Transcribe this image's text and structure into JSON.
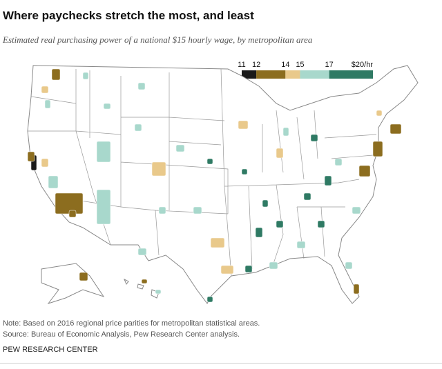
{
  "header": {
    "title": "Where paychecks stretch the most, and least",
    "subtitle": "Estimated real purchasing power of a national $15 hourly wage, by metropolitan area"
  },
  "legend": {
    "ticks": [
      11,
      12,
      14,
      15,
      17,
      {
        "value": 20,
        "label": "$20/hr"
      }
    ],
    "colors": [
      "#1a1a1a",
      "#8c6d1f",
      "#e9c98b",
      "#a8d8cc",
      "#2f7a64"
    ]
  },
  "footer": {
    "note": "Note: Based on 2016 regional price parities for metropolitan statistical areas.",
    "source": "Source: Bureau of Economic Analysis, Pew Research Center analysis.",
    "brand": "PEW RESEARCH CENTER"
  }
}
